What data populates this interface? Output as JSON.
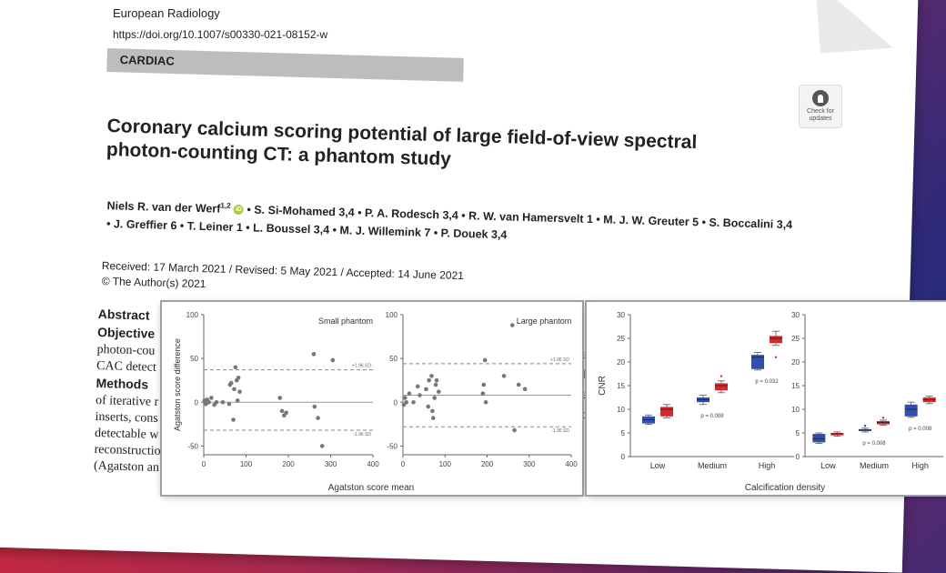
{
  "journal": "European Radiology",
  "doi": "https://doi.org/10.1007/s00330-021-08152-w",
  "section": "CARDIAC",
  "check_updates": "Check for updates",
  "title": "Coronary calcium scoring potential of large field-of-view spectral photon-counting CT: a phantom study",
  "authors_line1": "Niels R. van der Werf",
  "authors_line1_sup": "1,2",
  "authors_rest": "• S. Si-Mohamed 3,4 • P. A. Rodesch 3,4 • R. W. van Hamersvelt 1 • M. J. W. Greuter 5 • S. Boccalini 3,4 • J. Greffier 6 • T. Leiner 1 • L. Boussel 3,4 • M. J. Willemink 7 • P. Douek 3,4",
  "dates": "Received: 17 March 2021 / Revised: 5 May 2021 / Accepted: 14 June 2021",
  "copyright": "© The Author(s) 2021",
  "abstract": {
    "heading": "Abstract",
    "objective_label": "Objective",
    "line1": "photon-cou",
    "line2": "CAC detect",
    "methods_label": "Methods",
    "line3": "of iterative r",
    "line4": "inserts, cons",
    "line5": "detectable w",
    "line6": "reconstructio",
    "line7": "(Agatston an",
    "right1": "al",
    "right2": "ls",
    "right3": "e",
    "right4": "d"
  },
  "chart_data": [
    {
      "type": "scatter",
      "title": "Small phantom",
      "xlabel": "Agatston score mean",
      "ylabel": "Agatston score difference",
      "xlim": [
        0,
        400
      ],
      "ylim": [
        -60,
        100
      ],
      "xticks": [
        0,
        100,
        200,
        300,
        400
      ],
      "yticks": [
        -50,
        0,
        50,
        100
      ],
      "mean_line": 0,
      "upper_loa": 37,
      "lower_loa": -32,
      "upper_label": "+1.96 SD",
      "lower_label": "-1.96 SD",
      "points": [
        [
          2,
          2
        ],
        [
          5,
          -2
        ],
        [
          8,
          3
        ],
        [
          12,
          0
        ],
        [
          18,
          5
        ],
        [
          25,
          -3
        ],
        [
          30,
          0
        ],
        [
          45,
          0
        ],
        [
          60,
          -2
        ],
        [
          62,
          20
        ],
        [
          65,
          22
        ],
        [
          70,
          -20
        ],
        [
          72,
          15
        ],
        [
          75,
          40
        ],
        [
          78,
          25
        ],
        [
          80,
          2
        ],
        [
          82,
          28
        ],
        [
          85,
          12
        ],
        [
          180,
          5
        ],
        [
          185,
          -10
        ],
        [
          190,
          -15
        ],
        [
          195,
          -12
        ],
        [
          260,
          55
        ],
        [
          262,
          -5
        ],
        [
          270,
          -18
        ],
        [
          280,
          -50
        ],
        [
          305,
          48
        ]
      ]
    },
    {
      "type": "scatter",
      "title": "Large phantom",
      "xlabel": "Agatston score mean",
      "xlim": [
        0,
        400
      ],
      "ylim": [
        -60,
        100
      ],
      "xticks": [
        0,
        100,
        200,
        300,
        400
      ],
      "yticks": [
        -50,
        0,
        50,
        100
      ],
      "mean_line": 8,
      "upper_loa": 44,
      "lower_loa": -28,
      "upper_label": "+1.96 SD",
      "lower_label": "-1.96 SD",
      "points": [
        [
          2,
          -3
        ],
        [
          5,
          5
        ],
        [
          8,
          0
        ],
        [
          15,
          10
        ],
        [
          25,
          0
        ],
        [
          35,
          18
        ],
        [
          40,
          8
        ],
        [
          55,
          15
        ],
        [
          60,
          -5
        ],
        [
          62,
          25
        ],
        [
          68,
          30
        ],
        [
          70,
          -10
        ],
        [
          72,
          -18
        ],
        [
          75,
          5
        ],
        [
          78,
          20
        ],
        [
          80,
          25
        ],
        [
          85,
          12
        ],
        [
          190,
          10
        ],
        [
          192,
          20
        ],
        [
          195,
          48
        ],
        [
          197,
          0
        ],
        [
          240,
          30
        ],
        [
          260,
          88
        ],
        [
          265,
          -32
        ],
        [
          275,
          20
        ],
        [
          290,
          15
        ]
      ]
    },
    {
      "type": "box",
      "ylabel": "CNR",
      "xlabel": "Calcification density",
      "categories": [
        "Low",
        "Medium",
        "High"
      ],
      "ylim": [
        0,
        30
      ],
      "yticks": [
        0,
        5,
        10,
        15,
        20,
        25,
        30
      ],
      "series_colors": [
        "#2e4fae",
        "#d6282e"
      ],
      "boxes": [
        [
          {
            "q1": 7,
            "q3": 8.5,
            "med": 7.8,
            "lo": 6.8,
            "hi": 8.8
          },
          {
            "q1": 8.5,
            "q3": 10.5,
            "med": 10,
            "lo": 8.2,
            "hi": 11
          }
        ],
        [
          {
            "q1": 11.5,
            "q3": 12.5,
            "med": 12,
            "lo": 11,
            "hi": 13
          },
          {
            "q1": 14,
            "q3": 15.5,
            "med": 15,
            "lo": 13.5,
            "hi": 16
          }
        ],
        [
          {
            "q1": 18.5,
            "q3": 21.5,
            "med": 21,
            "lo": 18.3,
            "hi": 22
          },
          {
            "q1": 24,
            "q3": 25.5,
            "med": 25,
            "lo": 23.5,
            "hi": 26.5
          }
        ]
      ],
      "outliers": [
        [
          1,
          1,
          17
        ],
        [
          2,
          1,
          21
        ]
      ],
      "p_values": [
        "",
        "p = 0.008",
        "p = 0.032"
      ]
    },
    {
      "type": "box",
      "xlabel": "Calcification density",
      "categories": [
        "Low",
        "Medium",
        "High"
      ],
      "ylim": [
        0,
        30
      ],
      "yticks": [
        0,
        5,
        10,
        15,
        20,
        25,
        30
      ],
      "series_colors": [
        "#2e4fae",
        "#d6282e"
      ],
      "boxes": [
        [
          {
            "q1": 3,
            "q3": 4.8,
            "med": 3.8,
            "lo": 2.8,
            "hi": 5
          },
          {
            "q1": 4.5,
            "q3": 5,
            "med": 4.8,
            "lo": 4.3,
            "hi": 5.2
          }
        ],
        [
          {
            "q1": 5.4,
            "q3": 5.8,
            "med": 5.6,
            "lo": 5.2,
            "hi": 6
          },
          {
            "q1": 6.8,
            "q3": 7.5,
            "med": 7.2,
            "lo": 6.6,
            "hi": 7.7
          }
        ],
        [
          {
            "q1": 8.5,
            "q3": 11,
            "med": 10,
            "lo": 8.3,
            "hi": 11.5
          },
          {
            "q1": 11.5,
            "q3": 12.5,
            "med": 12,
            "lo": 11.2,
            "hi": 12.8
          }
        ]
      ],
      "outliers": [
        [
          1,
          0,
          6.5
        ],
        [
          1,
          1,
          8.2
        ]
      ],
      "p_values": [
        "",
        "p = 0.008",
        "p = 0.008"
      ]
    }
  ]
}
